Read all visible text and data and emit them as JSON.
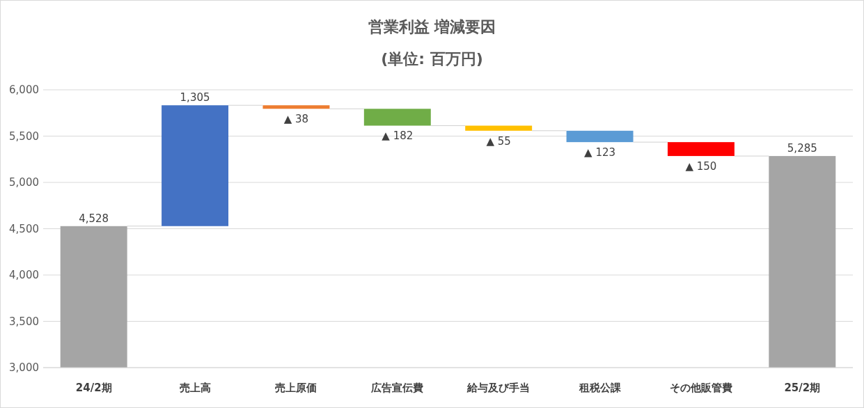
{
  "chart_data": {
    "type": "bar",
    "title": "営業利益 増減要因",
    "subtitle": "(単位: 百万円)",
    "categories": [
      "24/2期",
      "売上高",
      "売上原価",
      "広告宣伝費",
      "給与及び手当",
      "租税公課",
      "その他販管費",
      "25/2期"
    ],
    "values": [
      4528,
      1305,
      -38,
      -182,
      -55,
      -123,
      -150,
      5285
    ],
    "base": [
      null,
      4528,
      5833,
      5795,
      5613,
      5558,
      5435,
      null
    ],
    "colors": [
      "#a5a5a5",
      "#4472c4",
      "#ed7d31",
      "#70ad47",
      "#ffc000",
      "#5b9bd5",
      "#ff0000",
      "#a5a5a5"
    ],
    "value_labels": [
      "4,528",
      "1,305",
      "▲ 38",
      "▲ 182",
      "▲ 55",
      "▲ 123",
      "▲ 150",
      "5,285"
    ],
    "ylim": [
      3000,
      6000
    ],
    "yticks": [
      {
        "value": 3000,
        "label": "3,000"
      },
      {
        "value": 3500,
        "label": "3,500"
      },
      {
        "value": 4000,
        "label": "4,000"
      },
      {
        "value": 4500,
        "label": "4,500"
      },
      {
        "value": 5000,
        "label": "5,000"
      },
      {
        "value": 5500,
        "label": "5,500"
      },
      {
        "value": 6000,
        "label": "6,000"
      }
    ],
    "grid": "y"
  }
}
